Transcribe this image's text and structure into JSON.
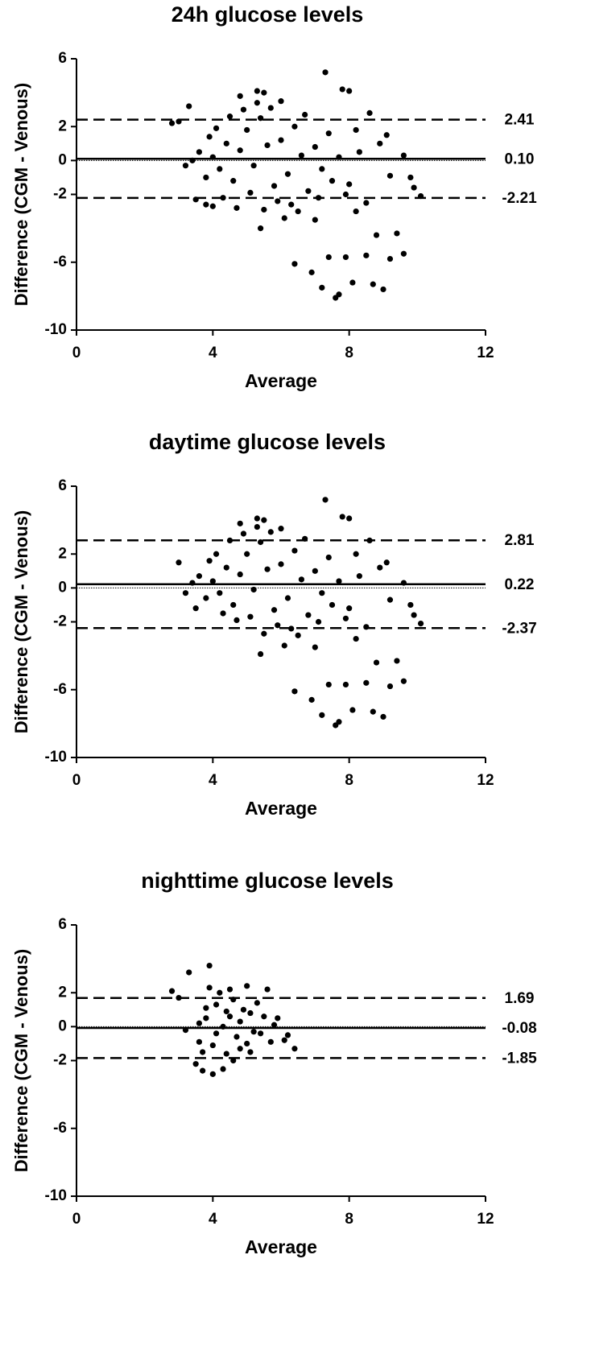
{
  "chart_data": [
    {
      "type": "scatter",
      "title": "24h glucose levels",
      "xlabel": "Average",
      "ylabel": "Difference (CGM - Venous)",
      "x": [
        7.3,
        7.8,
        8.0,
        7.6,
        7.7,
        8.1,
        8.7,
        9.0,
        7.2,
        6.9,
        6.4,
        7.4,
        8.5,
        9.2,
        9.6,
        7.9,
        8.8,
        9.4,
        3.3,
        3.0,
        2.8,
        3.5,
        3.8,
        4.0,
        5.3,
        5.5,
        4.8,
        6.0,
        10.1,
        9.9,
        9.6,
        9.1,
        8.6,
        5.4,
        6.1,
        8.2,
        7.0,
        3.2,
        9.8,
        4.0,
        4.2,
        4.4,
        4.6,
        4.8,
        5.0,
        5.2,
        5.4,
        5.6,
        5.8,
        6.0,
        6.2,
        6.4,
        6.6,
        6.8,
        7.0,
        7.2,
        7.4,
        3.6,
        3.8,
        4.1,
        4.5,
        4.9,
        5.1,
        5.3,
        5.7,
        5.9,
        6.3,
        6.7,
        7.1,
        7.5,
        7.7,
        8.0,
        8.3,
        8.5,
        8.9,
        9.2,
        4.3,
        4.7,
        3.4,
        5.5,
        6.5,
        7.9,
        8.2,
        3.9
      ],
      "values": [
        5.2,
        4.2,
        4.1,
        -8.1,
        -7.9,
        -7.2,
        -7.3,
        -7.6,
        -7.5,
        -6.6,
        -6.1,
        -5.7,
        -5.6,
        -5.8,
        -5.5,
        -5.7,
        -4.4,
        -4.3,
        3.2,
        2.3,
        2.2,
        -2.3,
        -2.6,
        -2.7,
        4.1,
        4.0,
        3.8,
        3.5,
        -2.1,
        -1.6,
        0.3,
        1.5,
        2.8,
        -4.0,
        -3.4,
        -3.0,
        -3.5,
        -0.3,
        -1.0,
        0.2,
        -0.5,
        1.0,
        -1.2,
        0.6,
        1.8,
        -0.3,
        2.5,
        0.9,
        -1.5,
        1.2,
        -0.8,
        2.0,
        0.3,
        -1.8,
        0.8,
        -0.5,
        1.6,
        0.5,
        -1.0,
        1.9,
        2.6,
        3.0,
        -1.9,
        3.4,
        3.1,
        -2.4,
        -2.6,
        2.7,
        -2.2,
        -1.2,
        0.2,
        -1.4,
        0.5,
        -2.5,
        1.0,
        -0.9,
        -2.2,
        -2.8,
        0.0,
        -2.9,
        -3.0,
        -2.0,
        1.8,
        1.4
      ],
      "color": "#000000",
      "xlim": [
        0,
        12
      ],
      "ylim": [
        -10,
        6
      ],
      "xticks": [
        0,
        4,
        8,
        12
      ],
      "yticks": [
        6,
        2,
        0,
        -2,
        -6,
        -10
      ],
      "upper": 2.41,
      "mean": {
        "value": 0.1,
        "label": "0.10"
      },
      "lower": -2.21
    },
    {
      "type": "scatter",
      "title": "daytime glucose levels",
      "xlabel": "Average",
      "ylabel": "Difference (CGM - Venous)",
      "x": [
        7.3,
        7.8,
        8.0,
        7.6,
        7.7,
        8.1,
        8.7,
        9.0,
        7.2,
        6.9,
        6.4,
        7.4,
        8.5,
        9.2,
        9.6,
        7.9,
        8.8,
        9.4,
        3.0,
        3.5,
        5.3,
        5.5,
        4.8,
        6.0,
        10.1,
        9.9,
        9.6,
        9.1,
        8.6,
        5.4,
        6.1,
        8.2,
        7.0,
        3.2,
        9.8,
        4.0,
        4.2,
        4.4,
        4.6,
        4.8,
        5.0,
        5.2,
        5.4,
        5.6,
        5.8,
        6.0,
        6.2,
        6.4,
        6.6,
        6.8,
        7.0,
        7.2,
        7.4,
        3.6,
        3.8,
        4.1,
        4.5,
        4.9,
        5.1,
        5.3,
        5.7,
        5.9,
        6.3,
        6.7,
        7.1,
        7.5,
        7.7,
        8.0,
        8.3,
        8.5,
        8.9,
        9.2,
        4.3,
        4.7,
        3.4,
        5.5,
        6.5,
        7.9,
        8.2,
        3.9
      ],
      "values": [
        5.2,
        4.2,
        4.1,
        -8.1,
        -7.9,
        -7.2,
        -7.3,
        -7.6,
        -7.5,
        -6.6,
        -6.1,
        -5.7,
        -5.6,
        -5.8,
        -5.5,
        -5.7,
        -4.4,
        -4.3,
        1.5,
        -1.2,
        4.1,
        4.0,
        3.8,
        3.5,
        -2.1,
        -1.6,
        0.3,
        1.5,
        2.8,
        -3.9,
        -3.4,
        -3.0,
        -3.5,
        -0.3,
        -1.0,
        0.4,
        -0.3,
        1.2,
        -1.0,
        0.8,
        2.0,
        -0.1,
        2.7,
        1.1,
        -1.3,
        1.4,
        -0.6,
        2.2,
        0.5,
        -1.6,
        1.0,
        -0.3,
        1.8,
        0.7,
        -0.6,
        2.0,
        2.8,
        3.2,
        -1.7,
        3.6,
        3.3,
        -2.2,
        -2.4,
        2.9,
        -2.0,
        -1.0,
        0.4,
        -1.2,
        0.7,
        -2.3,
        1.2,
        -0.7,
        -1.5,
        -1.9,
        0.3,
        -2.7,
        -2.8,
        -1.8,
        2.0,
        1.6
      ],
      "color": "#000000",
      "xlim": [
        0,
        12
      ],
      "ylim": [
        -10,
        6
      ],
      "xticks": [
        0,
        4,
        8,
        12
      ],
      "yticks": [
        6,
        2,
        0,
        -2,
        -6,
        -10
      ],
      "upper": 2.81,
      "mean": 0.22,
      "lower": -2.37
    },
    {
      "type": "scatter",
      "title": "nighttime glucose levels",
      "xlabel": "Average",
      "ylabel": "Difference (CGM - Venous)",
      "x": [
        3.3,
        3.9,
        2.8,
        3.0,
        3.2,
        3.5,
        3.7,
        4.0,
        4.3,
        4.6,
        5.0,
        5.6,
        6.4,
        6.1,
        5.9,
        4.5,
        4.1,
        3.8,
        4.3,
        4.7,
        5.2,
        5.5,
        4.9,
        4.0,
        3.6,
        4.4,
        5.1,
        5.7,
        4.8,
        5.3,
        3.9,
        4.2,
        4.6,
        5.0,
        3.7,
        3.6,
        4.4,
        4.8,
        5.4,
        5.8,
        6.2,
        3.8,
        4.1,
        4.5,
        5.1
      ],
      "values": [
        3.2,
        3.6,
        2.1,
        1.7,
        -0.2,
        -2.2,
        -2.6,
        -2.8,
        -2.5,
        -2.0,
        2.4,
        2.2,
        -1.3,
        -0.8,
        0.5,
        2.2,
        1.3,
        0.5,
        0.0,
        -0.6,
        -0.3,
        0.6,
        1.0,
        -1.1,
        0.2,
        -1.6,
        -1.5,
        -0.9,
        0.3,
        1.4,
        2.3,
        2.0,
        1.6,
        -1.0,
        -1.5,
        -0.9,
        0.9,
        -1.3,
        -0.4,
        0.1,
        -0.5,
        1.1,
        -0.4,
        0.6,
        0.8
      ],
      "color": "#000000",
      "xlim": [
        0,
        12
      ],
      "ylim": [
        -10,
        6
      ],
      "xticks": [
        0,
        4,
        8,
        12
      ],
      "yticks": [
        6,
        2,
        0,
        -2,
        -6,
        -10
      ],
      "upper": 1.69,
      "mean": -0.08,
      "lower": -1.85
    }
  ]
}
